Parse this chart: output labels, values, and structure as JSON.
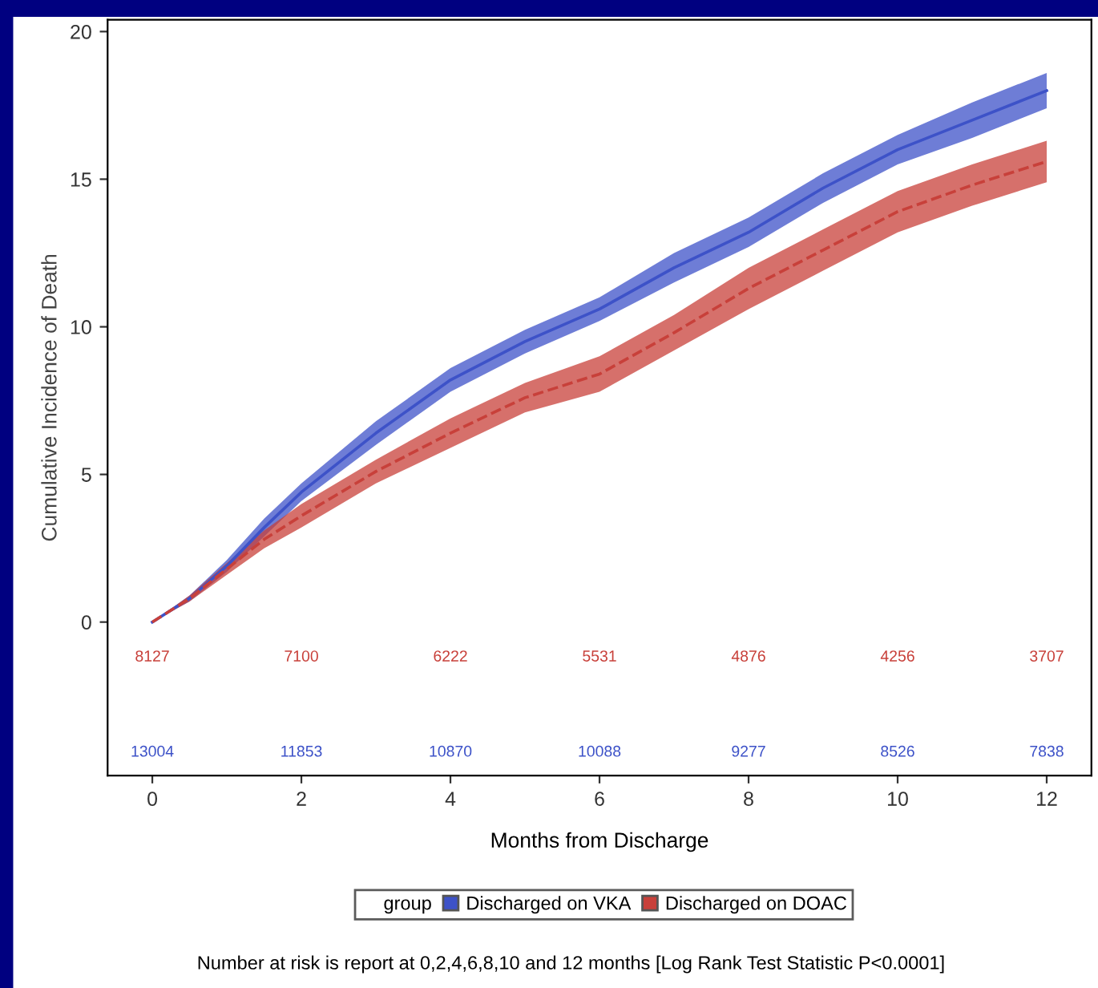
{
  "chart_data": {
    "type": "line",
    "xlabel": "Months from Discharge",
    "ylabel": "Cumulative Incidence of Death",
    "legend_title": "group",
    "x": [
      0,
      0.5,
      1,
      1.5,
      2,
      3,
      4,
      5,
      6,
      7,
      8,
      9,
      10,
      11,
      12
    ],
    "series": [
      {
        "name": "Discharged on VKA",
        "color": "#3d52c8",
        "line_style": "solid",
        "values": [
          0,
          0.8,
          1.9,
          3.2,
          4.4,
          6.4,
          8.2,
          9.5,
          10.6,
          12.0,
          13.2,
          14.7,
          16.0,
          17.0,
          18.0
        ],
        "lower": [
          0,
          0.7,
          1.7,
          2.9,
          4.1,
          6.0,
          7.8,
          9.1,
          10.2,
          11.5,
          12.7,
          14.2,
          15.5,
          16.4,
          17.4
        ],
        "upper": [
          0,
          0.9,
          2.1,
          3.5,
          4.7,
          6.8,
          8.6,
          9.9,
          11.0,
          12.5,
          13.7,
          15.2,
          16.5,
          17.6,
          18.6
        ]
      },
      {
        "name": "Discharged on DOAC",
        "color": "#c8403a",
        "line_style": "dashed",
        "values": [
          0,
          0.8,
          1.8,
          2.8,
          3.6,
          5.1,
          6.4,
          7.6,
          8.4,
          9.8,
          11.3,
          12.6,
          13.9,
          14.8,
          15.6
        ],
        "lower": [
          0,
          0.7,
          1.6,
          2.5,
          3.2,
          4.7,
          5.9,
          7.1,
          7.8,
          9.2,
          10.6,
          11.9,
          13.2,
          14.1,
          14.9
        ],
        "upper": [
          0,
          0.9,
          2.0,
          3.1,
          4.0,
          5.5,
          6.9,
          8.1,
          9.0,
          10.4,
          12.0,
          13.3,
          14.6,
          15.5,
          16.3
        ]
      }
    ],
    "xlim": [
      -0.6,
      12.6
    ],
    "ylim": [
      -5.2,
      20.4
    ],
    "xticks": [
      0,
      2,
      4,
      6,
      8,
      10,
      12
    ],
    "yticks": [
      0,
      5,
      10,
      15,
      20
    ],
    "grid": false,
    "legend": "bottom",
    "marker": "none",
    "annotations": [
      "8127",
      "7100",
      "6222",
      "5531",
      "4876",
      "4256",
      "3707",
      "13004",
      "11853",
      "10870",
      "10088",
      "9277",
      "8526",
      "7838",
      "Number at risk is report at 0,2,4,6,8,10 and 12 months [Log Rank Test Statistic P<0.0001]"
    ]
  }
}
